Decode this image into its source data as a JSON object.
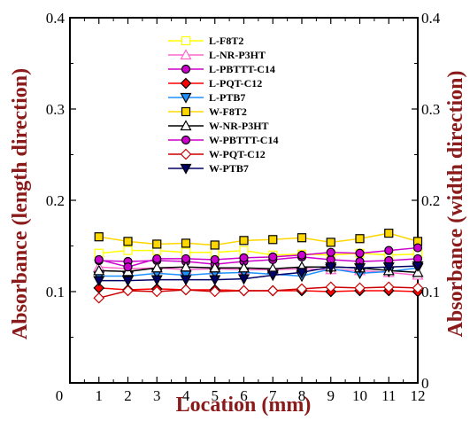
{
  "chart_data": {
    "type": "line",
    "xlabel": "Location (mm)",
    "ylabel": "Absorbance (length direction)",
    "ylabel_right": "Absorbance (width direction)",
    "xlim": [
      0,
      12
    ],
    "ylim": [
      0,
      0.4
    ],
    "x_ticks": [
      "0",
      "1",
      "2",
      "3",
      "4",
      "5",
      "6",
      "7",
      "8",
      "9",
      "10",
      "11",
      "12"
    ],
    "y_ticks_left": [
      "0.1",
      "0.2",
      "0.3",
      "0.4"
    ],
    "y_ticks_right": [
      "0",
      "0.1",
      "0.2",
      "0.3",
      "0.4"
    ],
    "legend_position": "top-center",
    "x": [
      1,
      2,
      3,
      4,
      5,
      6,
      7,
      8,
      9,
      10,
      11,
      12
    ],
    "series": [
      {
        "name": "L-F8T2",
        "color": "#ffff00",
        "marker": "square-open",
        "values": [
          0.142,
          0.145,
          0.145,
          0.143,
          0.143,
          0.145,
          0.14,
          0.141,
          0.14,
          0.142,
          0.14,
          0.141
        ]
      },
      {
        "name": "L-NR-P3HT",
        "color": "#ff66cc",
        "marker": "triangle-up-open",
        "values": [
          0.127,
          0.125,
          0.126,
          0.124,
          0.125,
          0.124,
          0.124,
          0.125,
          0.124,
          0.123,
          0.121,
          0.118
        ]
      },
      {
        "name": "L-PBTTT-C14",
        "color": "#cc00cc",
        "marker": "circle-filled",
        "values": [
          0.134,
          0.133,
          0.134,
          0.133,
          0.13,
          0.133,
          0.135,
          0.138,
          0.135,
          0.133,
          0.134,
          0.136
        ]
      },
      {
        "name": "L-PQT-C12",
        "color": "#ff0000",
        "marker": "diamond-filled",
        "values": [
          0.104,
          0.102,
          0.103,
          0.102,
          0.102,
          0.101,
          0.101,
          0.101,
          0.1,
          0.101,
          0.101,
          0.1
        ]
      },
      {
        "name": "L-PTB7",
        "color": "#1e90ff",
        "marker": "triangle-down-filled",
        "values": [
          0.117,
          0.117,
          0.12,
          0.118,
          0.12,
          0.121,
          0.119,
          0.117,
          0.125,
          0.12,
          0.122,
          0.126
        ]
      },
      {
        "name": "W-F8T2",
        "color": "#ffd700",
        "marker": "square-filled",
        "values": [
          0.16,
          0.155,
          0.152,
          0.153,
          0.151,
          0.156,
          0.157,
          0.159,
          0.154,
          0.158,
          0.164,
          0.155
        ]
      },
      {
        "name": "W-NR-P3HT",
        "color": "#000000",
        "marker": "triangle-up-open",
        "values": [
          0.123,
          0.122,
          0.126,
          0.127,
          0.126,
          0.126,
          0.125,
          0.127,
          0.127,
          0.126,
          0.123,
          0.121
        ]
      },
      {
        "name": "W-PBTTT-C14",
        "color": "#cc00cc",
        "marker": "circle-filled",
        "values": [
          0.135,
          0.127,
          0.136,
          0.136,
          0.135,
          0.137,
          0.138,
          0.14,
          0.143,
          0.142,
          0.145,
          0.148
        ]
      },
      {
        "name": "W-PQT-C12",
        "color": "#cc0000",
        "marker": "diamond-open",
        "values": [
          0.093,
          0.101,
          0.1,
          0.102,
          0.1,
          0.101,
          0.101,
          0.103,
          0.105,
          0.104,
          0.105,
          0.104
        ]
      },
      {
        "name": "W-PTB7",
        "color": "#000066",
        "marker": "triangle-down-filled",
        "values": [
          0.112,
          0.112,
          0.113,
          0.113,
          0.113,
          0.114,
          0.118,
          0.121,
          0.127,
          0.126,
          0.127,
          0.128
        ]
      }
    ]
  }
}
